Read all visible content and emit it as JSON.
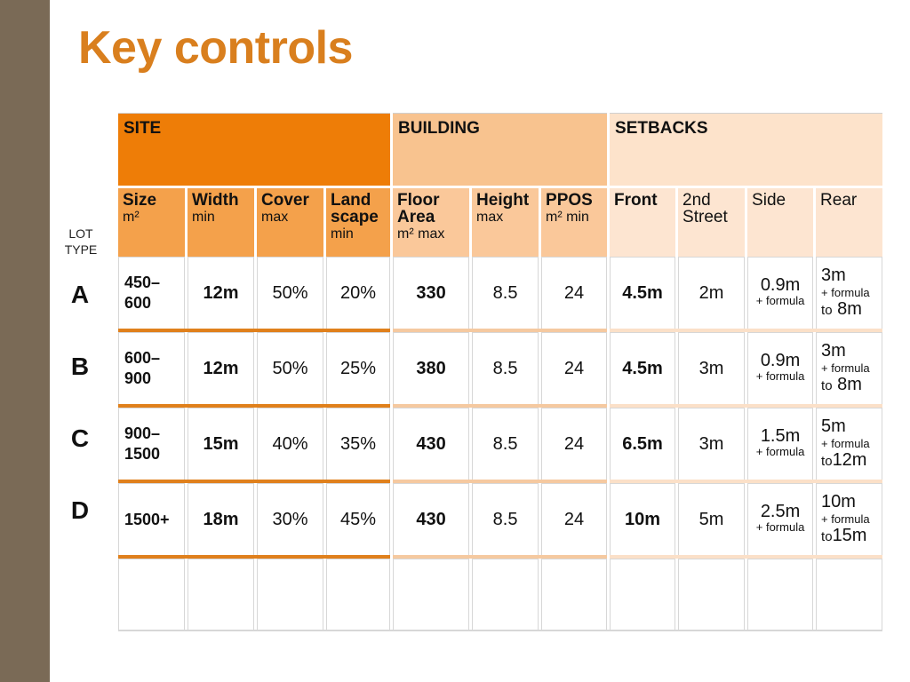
{
  "title": "Key controls",
  "lot_type_label": [
    "LOT",
    "TYPE"
  ],
  "sections": {
    "site": "SITE",
    "building": "BUILDING",
    "setbacks": "SETBACKS"
  },
  "columns": {
    "size": {
      "name": "Size",
      "sub": "m²"
    },
    "width": {
      "name": "Width",
      "sub": "min"
    },
    "cover": {
      "name": "Cover",
      "sub": "max"
    },
    "landscape": {
      "name1": "Land",
      "name2": "scape",
      "sub": "min"
    },
    "floor_area": {
      "name1": "Floor",
      "name2": "Area",
      "sub": "m² max"
    },
    "height": {
      "name": "Height",
      "sub": "max"
    },
    "ppos": {
      "name": "PPOS",
      "sub": "m² min"
    },
    "front": {
      "name": "Front"
    },
    "second_street": {
      "name1": "2nd",
      "name2": "Street"
    },
    "side": {
      "name": "Side"
    },
    "rear": {
      "name": "Rear"
    }
  },
  "rows": [
    {
      "lot": "A",
      "size1": "450–",
      "size2": "600",
      "width": "12m",
      "cover": "50%",
      "landscape": "20%",
      "floor_area": "330",
      "height": "8.5",
      "ppos": "24",
      "front": "4.5m",
      "second_street": "2m",
      "side": "0.9m",
      "side_formula": "+ formula",
      "rear": "3m",
      "rear_formula": "+ formula",
      "rear_to": "to",
      "rear_to_val": "8m"
    },
    {
      "lot": "B",
      "size1": "600–",
      "size2": "900",
      "width": "12m",
      "cover": "50%",
      "landscape": "25%",
      "floor_area": "380",
      "height": "8.5",
      "ppos": "24",
      "front": "4.5m",
      "second_street": "3m",
      "side": "0.9m",
      "side_formula": "+ formula",
      "rear": "3m",
      "rear_formula": "+ formula",
      "rear_to": "to",
      "rear_to_val": "8m"
    },
    {
      "lot": "C",
      "size1": "900–",
      "size2": "1500",
      "width": "15m",
      "cover": "40%",
      "landscape": "35%",
      "floor_area": "430",
      "height": "8.5",
      "ppos": "24",
      "front": "6.5m",
      "second_street": "3m",
      "side": "1.5m",
      "side_formula": "+ formula",
      "rear": "5m",
      "rear_formula": "+ formula",
      "rear_to": "to",
      "rear_to_val": "12m"
    },
    {
      "lot": "D",
      "size1": "1500+",
      "size2": "",
      "width": "18m",
      "cover": "30%",
      "landscape": "45%",
      "floor_area": "430",
      "height": "8.5",
      "ppos": "24",
      "front": "10m",
      "second_street": "5m",
      "side": "2.5m",
      "side_formula": "+ formula",
      "rear": "10m",
      "rear_formula": "+ formula",
      "rear_to": "to",
      "rear_to_val": "15m"
    }
  ],
  "colors": {
    "title": "#d97f1e",
    "left_bar": "#7a6a56",
    "site_section": "#ee7d07",
    "site_columns": "#f4a14b",
    "building_section": "#f8c38f",
    "building_columns": "#fac89a",
    "setbacks_section": "#fde3cb",
    "setbacks_columns": "#fde5d1"
  }
}
